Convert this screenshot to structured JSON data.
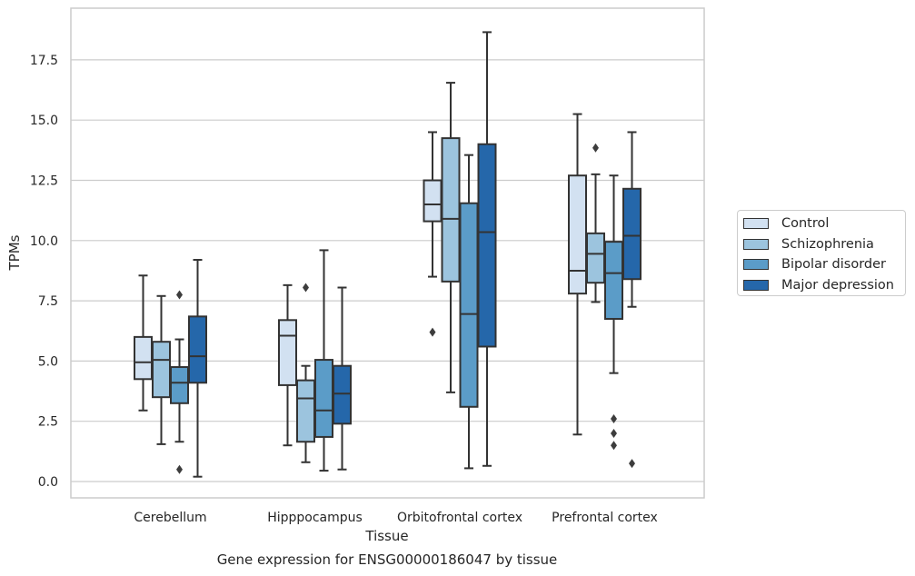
{
  "chart_data": {
    "type": "box",
    "title": "",
    "caption": "Gene expression for ENSG00000186047 by tissue",
    "xlabel": "Tissue",
    "ylabel": "TPMs",
    "categories": [
      "Cerebellum",
      "Hipppocampus",
      "Orbitofrontal cortex",
      "Prefrontal cortex"
    ],
    "ylim": [
      -0.7,
      19.6
    ],
    "yticks": [
      "0.0",
      "2.5",
      "5.0",
      "7.5",
      "10.0",
      "12.5",
      "15.0",
      "17.5"
    ],
    "grid": true,
    "legend_position": "right",
    "series": [
      {
        "name": "Control",
        "color": "#d2e1f1",
        "boxes": [
          {
            "whisker_low": 2.95,
            "q1": 4.25,
            "median": 4.95,
            "q3": 6.0,
            "whisker_high": 8.55,
            "outliers": []
          },
          {
            "whisker_low": 1.5,
            "q1": 4.0,
            "median": 6.05,
            "q3": 6.7,
            "whisker_high": 8.15,
            "outliers": []
          },
          {
            "whisker_low": 8.5,
            "q1": 10.8,
            "median": 11.5,
            "q3": 12.5,
            "whisker_high": 14.5,
            "outliers": [
              6.2
            ]
          },
          {
            "whisker_low": 1.95,
            "q1": 7.8,
            "median": 8.75,
            "q3": 12.7,
            "whisker_high": 15.25,
            "outliers": []
          }
        ]
      },
      {
        "name": "Schizophrenia",
        "color": "#9cc4de",
        "boxes": [
          {
            "whisker_low": 1.55,
            "q1": 3.5,
            "median": 5.05,
            "q3": 5.8,
            "whisker_high": 7.7,
            "outliers": []
          },
          {
            "whisker_low": 0.8,
            "q1": 1.65,
            "median": 3.45,
            "q3": 4.2,
            "whisker_high": 4.8,
            "outliers": [
              8.05
            ]
          },
          {
            "whisker_low": 3.7,
            "q1": 8.3,
            "median": 10.9,
            "q3": 14.25,
            "whisker_high": 16.55,
            "outliers": []
          },
          {
            "whisker_low": 7.45,
            "q1": 8.25,
            "median": 9.45,
            "q3": 10.3,
            "whisker_high": 12.75,
            "outliers": [
              13.85
            ]
          }
        ]
      },
      {
        "name": "Bipolar disorder",
        "color": "#5b9cc8",
        "boxes": [
          {
            "whisker_low": 1.65,
            "q1": 3.25,
            "median": 4.1,
            "q3": 4.75,
            "whisker_high": 5.9,
            "outliers": [
              7.75,
              0.5
            ]
          },
          {
            "whisker_low": 0.45,
            "q1": 1.85,
            "median": 2.95,
            "q3": 5.05,
            "whisker_high": 9.6,
            "outliers": []
          },
          {
            "whisker_low": 0.55,
            "q1": 3.1,
            "median": 6.95,
            "q3": 11.55,
            "whisker_high": 13.55,
            "outliers": []
          },
          {
            "whisker_low": 4.5,
            "q1": 6.75,
            "median": 8.65,
            "q3": 9.95,
            "whisker_high": 12.7,
            "outliers": [
              2.6,
              2.0,
              1.5
            ]
          }
        ]
      },
      {
        "name": "Major depression",
        "color": "#2567aa",
        "boxes": [
          {
            "whisker_low": 0.2,
            "q1": 4.1,
            "median": 5.2,
            "q3": 6.85,
            "whisker_high": 9.2,
            "outliers": []
          },
          {
            "whisker_low": 0.5,
            "q1": 2.4,
            "median": 3.65,
            "q3": 4.8,
            "whisker_high": 8.05,
            "outliers": []
          },
          {
            "whisker_low": 0.65,
            "q1": 5.6,
            "median": 10.35,
            "q3": 14.0,
            "whisker_high": 18.65,
            "outliers": []
          },
          {
            "whisker_low": 7.25,
            "q1": 8.4,
            "median": 10.2,
            "q3": 12.15,
            "whisker_high": 14.5,
            "outliers": [
              0.75
            ]
          }
        ]
      }
    ]
  }
}
